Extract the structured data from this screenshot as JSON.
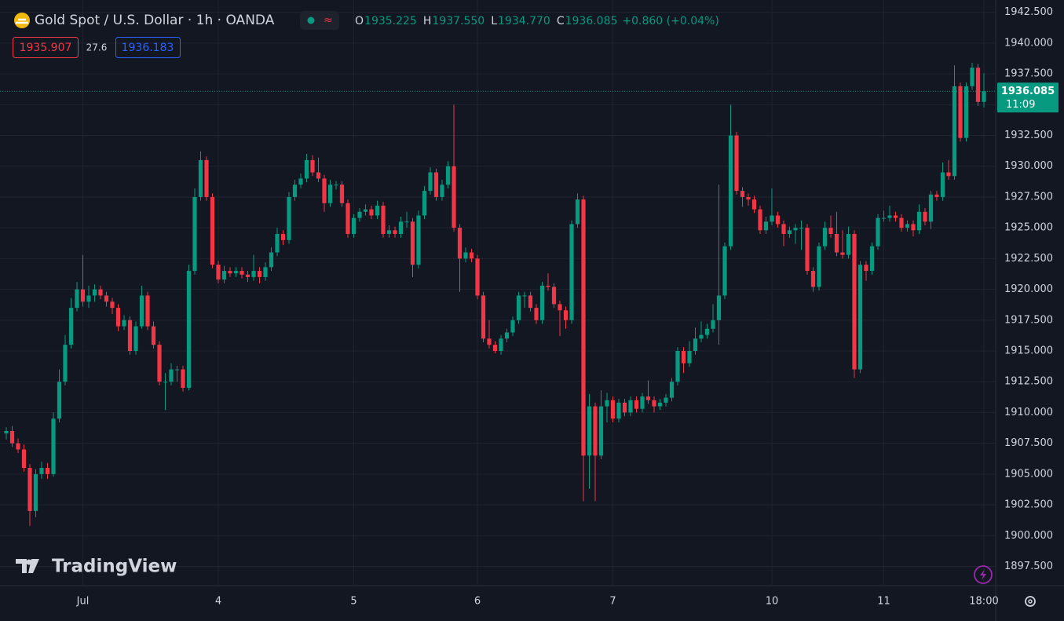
{
  "chart_data": {
    "type": "candlestick",
    "title": "Gold Spot / U.S. Dollar · 1h · OANDA",
    "legend": [
      {
        "label": "O",
        "value": "1935.225"
      },
      {
        "label": "H",
        "value": "1937.550"
      },
      {
        "label": "L",
        "value": "1934.770"
      },
      {
        "label": "C",
        "value": "1936.085"
      }
    ],
    "change": "+0.860 (+0.04%)",
    "bid": "1935.907",
    "spread": "27.6",
    "ask": "1936.183",
    "last_price_label": "1936.085",
    "countdown": "11:09",
    "watermark": "TradingView",
    "up_color": "#089981",
    "down_color": "#f23645",
    "grid": true,
    "ylim": [
      1896,
      1943.5
    ],
    "yticks": [
      {
        "value": 1897.5,
        "label": "1897.500"
      },
      {
        "value": 1900,
        "label": "1900.000"
      },
      {
        "value": 1902.5,
        "label": "1902.500"
      },
      {
        "value": 1905,
        "label": "1905.000"
      },
      {
        "value": 1907.5,
        "label": "1907.500"
      },
      {
        "value": 1910,
        "label": "1910.000"
      },
      {
        "value": 1912.5,
        "label": "1912.500"
      },
      {
        "value": 1915,
        "label": "1915.000"
      },
      {
        "value": 1917.5,
        "label": "1917.500"
      },
      {
        "value": 1920,
        "label": "1920.000"
      },
      {
        "value": 1922.5,
        "label": "1922.500"
      },
      {
        "value": 1925,
        "label": "1925.000"
      },
      {
        "value": 1927.5,
        "label": "1927.500"
      },
      {
        "value": 1930,
        "label": "1930.000"
      },
      {
        "value": 1932.5,
        "label": "1932.500"
      },
      {
        "value": 1935,
        "label": "1935.000"
      },
      {
        "value": 1937.5,
        "label": "1937.500"
      },
      {
        "value": 1940,
        "label": "1940.000"
      },
      {
        "value": 1942.5,
        "label": "1942.500"
      }
    ],
    "categories": [
      null,
      null,
      null,
      null,
      null,
      null,
      null,
      null,
      null,
      null,
      null,
      null,
      null,
      "Jul",
      null,
      null,
      null,
      null,
      null,
      null,
      null,
      null,
      null,
      null,
      null,
      null,
      null,
      null,
      null,
      null,
      null,
      null,
      null,
      null,
      null,
      null,
      "4",
      null,
      null,
      null,
      null,
      null,
      null,
      null,
      null,
      null,
      null,
      null,
      null,
      null,
      null,
      null,
      null,
      null,
      null,
      null,
      null,
      null,
      null,
      "5",
      null,
      null,
      null,
      null,
      null,
      null,
      null,
      null,
      null,
      null,
      null,
      null,
      null,
      null,
      null,
      null,
      null,
      null,
      null,
      null,
      "6",
      null,
      null,
      null,
      null,
      null,
      null,
      null,
      null,
      null,
      null,
      null,
      null,
      null,
      null,
      null,
      null,
      null,
      null,
      null,
      null,
      null,
      null,
      "7",
      null,
      null,
      null,
      null,
      null,
      null,
      null,
      null,
      null,
      null,
      null,
      null,
      null,
      null,
      null,
      null,
      null,
      null,
      null,
      null,
      null,
      null,
      null,
      null,
      null,
      null,
      "10",
      null,
      null,
      null,
      null,
      null,
      null,
      null,
      null,
      null,
      null,
      null,
      null,
      null,
      null,
      null,
      null,
      null,
      null,
      "11",
      null,
      null,
      null,
      null,
      null,
      null,
      null,
      null,
      null,
      null,
      null,
      null,
      null,
      null,
      null,
      null,
      "18:00"
    ],
    "ohlc": [
      [
        1908.3,
        1908.8,
        1907.8,
        1908.5
      ],
      [
        1908.5,
        1908.9,
        1907.2,
        1907.5
      ],
      [
        1907.5,
        1907.9,
        1906.7,
        1907
      ],
      [
        1907,
        1907.4,
        1905.2,
        1905.5
      ],
      [
        1905.5,
        1905.8,
        1900.8,
        1902
      ],
      [
        1902,
        1905.4,
        1901.5,
        1905
      ],
      [
        1905,
        1906,
        1904.6,
        1905.5
      ],
      [
        1905.5,
        1905.9,
        1904.6,
        1905
      ],
      [
        1905,
        1910,
        1904.8,
        1909.5
      ],
      [
        1909.5,
        1913.5,
        1909.2,
        1912.5
      ],
      [
        1912.5,
        1916.3,
        1912.2,
        1915.5
      ],
      [
        1915.5,
        1919.3,
        1915.2,
        1918.5
      ],
      [
        1918.5,
        1920.6,
        1918.2,
        1920
      ],
      [
        1920,
        1922.8,
        1918.6,
        1919
      ],
      [
        1919,
        1920.3,
        1918.5,
        1919.5
      ],
      [
        1919.5,
        1920.4,
        1919,
        1920
      ],
      [
        1920,
        1920.3,
        1919.2,
        1919.5
      ],
      [
        1919.5,
        1919.8,
        1918.6,
        1919
      ],
      [
        1919,
        1919.3,
        1918,
        1918.5
      ],
      [
        1918.5,
        1918.8,
        1916.6,
        1917
      ],
      [
        1917,
        1917.9,
        1916.7,
        1917.5
      ],
      [
        1917.5,
        1917.8,
        1914.7,
        1915
      ],
      [
        1915,
        1917.4,
        1914.7,
        1917
      ],
      [
        1917,
        1920.3,
        1916.8,
        1919.5
      ],
      [
        1919.5,
        1919.8,
        1916.7,
        1917
      ],
      [
        1917,
        1917.4,
        1915.2,
        1915.5
      ],
      [
        1915.5,
        1915.8,
        1912.2,
        1912.5
      ],
      [
        1912.5,
        1913.2,
        1910.2,
        1912.5
      ],
      [
        1912.5,
        1914,
        1912.2,
        1913.5
      ],
      [
        1913.5,
        1913.8,
        1912.5,
        1913.5
      ],
      [
        1913.5,
        1913.8,
        1911.7,
        1912
      ],
      [
        1912,
        1922,
        1911.8,
        1921.5
      ],
      [
        1921.5,
        1928.2,
        1921.2,
        1927.5
      ],
      [
        1927.5,
        1931.2,
        1927.2,
        1930.5
      ],
      [
        1930.5,
        1930.8,
        1927.2,
        1927.5
      ],
      [
        1927.5,
        1927.8,
        1921.7,
        1922
      ],
      [
        1922,
        1922.3,
        1920.5,
        1920.8
      ],
      [
        1920.8,
        1921.9,
        1920.5,
        1921.5
      ],
      [
        1921.5,
        1921.8,
        1921,
        1921.3
      ],
      [
        1921.3,
        1921.8,
        1921,
        1921.5
      ],
      [
        1921.5,
        1921.8,
        1920.9,
        1921.2
      ],
      [
        1921.2,
        1921.5,
        1920.6,
        1921
      ],
      [
        1921,
        1922.8,
        1920.7,
        1921.5
      ],
      [
        1921.5,
        1921.8,
        1920.5,
        1921
      ],
      [
        1921,
        1922.2,
        1920.7,
        1921.8
      ],
      [
        1921.8,
        1923.4,
        1921.5,
        1923
      ],
      [
        1923,
        1925,
        1922.7,
        1924.5
      ],
      [
        1924.5,
        1924.8,
        1923.6,
        1924
      ],
      [
        1924,
        1927.9,
        1923.7,
        1927.5
      ],
      [
        1927.5,
        1928.9,
        1927.2,
        1928.5
      ],
      [
        1928.5,
        1929.4,
        1928.2,
        1929
      ],
      [
        1929,
        1931,
        1928.7,
        1930.5
      ],
      [
        1930.5,
        1930.9,
        1929.2,
        1929.5
      ],
      [
        1929.5,
        1930.7,
        1928.7,
        1929
      ],
      [
        1929,
        1929.3,
        1926.3,
        1927
      ],
      [
        1927,
        1928.9,
        1926.7,
        1928.5
      ],
      [
        1928.5,
        1928.8,
        1928.1,
        1928.5
      ],
      [
        1928.5,
        1928.8,
        1926.7,
        1927
      ],
      [
        1927,
        1927.3,
        1924.2,
        1924.5
      ],
      [
        1924.5,
        1926.1,
        1924.2,
        1925.8
      ],
      [
        1925.8,
        1926.6,
        1925.5,
        1926.3
      ],
      [
        1926.3,
        1926.9,
        1926,
        1926.5
      ],
      [
        1926.5,
        1926.8,
        1925.7,
        1926
      ],
      [
        1926,
        1927.2,
        1925.7,
        1926.8
      ],
      [
        1926.8,
        1927.1,
        1924.2,
        1924.5
      ],
      [
        1924.5,
        1925.2,
        1924.2,
        1924.8
      ],
      [
        1924.8,
        1925.1,
        1924.2,
        1924.5
      ],
      [
        1924.5,
        1925.9,
        1924.2,
        1925.5
      ],
      [
        1925.5,
        1926.3,
        1925,
        1925.5
      ],
      [
        1925.5,
        1925.8,
        1921,
        1922
      ],
      [
        1922,
        1926.4,
        1921.7,
        1926
      ],
      [
        1926,
        1928.4,
        1925.7,
        1928
      ],
      [
        1928,
        1929.9,
        1927.7,
        1929.5
      ],
      [
        1929.5,
        1929.8,
        1927.2,
        1927.5
      ],
      [
        1927.5,
        1928.9,
        1927.2,
        1928.5
      ],
      [
        1928.5,
        1930.4,
        1928.2,
        1930
      ],
      [
        1930,
        1935,
        1924.7,
        1925
      ],
      [
        1925,
        1925.3,
        1919.8,
        1922.5
      ],
      [
        1922.5,
        1923.4,
        1922.2,
        1923
      ],
      [
        1923,
        1923.3,
        1922.2,
        1922.5
      ],
      [
        1922.5,
        1922.8,
        1919.2,
        1919.5
      ],
      [
        1919.5,
        1919.8,
        1915.7,
        1916
      ],
      [
        1916,
        1917.5,
        1915.2,
        1915.5
      ],
      [
        1915.5,
        1915.8,
        1914.8,
        1915
      ],
      [
        1915,
        1916.3,
        1914.7,
        1916
      ],
      [
        1916,
        1916.8,
        1915.7,
        1916.5
      ],
      [
        1916.5,
        1917.8,
        1916.2,
        1917.5
      ],
      [
        1917.5,
        1919.8,
        1917.2,
        1919.5
      ],
      [
        1919.5,
        1919.8,
        1918.5,
        1919.5
      ],
      [
        1919.5,
        1919.8,
        1918.2,
        1918.5
      ],
      [
        1918.5,
        1918.8,
        1917.2,
        1917.5
      ],
      [
        1917.5,
        1920.6,
        1917.2,
        1920.3
      ],
      [
        1920.3,
        1921.3,
        1919.9,
        1920.2
      ],
      [
        1920.2,
        1920.5,
        1918.5,
        1918.8
      ],
      [
        1918.8,
        1919.1,
        1916.2,
        1918.3
      ],
      [
        1918.3,
        1918.6,
        1916.8,
        1917.5
      ],
      [
        1917.5,
        1925.6,
        1917.2,
        1925.3
      ],
      [
        1925.3,
        1927.8,
        1925,
        1927.3
      ],
      [
        1927.3,
        1927.6,
        1902.8,
        1906.5
      ],
      [
        1906.5,
        1911.5,
        1903.8,
        1910.5
      ],
      [
        1910.5,
        1910.8,
        1902.8,
        1906.5
      ],
      [
        1906.5,
        1911.8,
        1906.2,
        1910.5
      ],
      [
        1910.5,
        1911.6,
        1909.2,
        1911
      ],
      [
        1911,
        1911.3,
        1909.2,
        1909.5
      ],
      [
        1909.5,
        1911.1,
        1909.2,
        1910.8
      ],
      [
        1910.8,
        1911.1,
        1909.7,
        1910
      ],
      [
        1910,
        1911.3,
        1909.7,
        1911
      ],
      [
        1911,
        1911.3,
        1910,
        1910.3
      ],
      [
        1910.3,
        1911.6,
        1910,
        1911.3
      ],
      [
        1911.3,
        1912.6,
        1910.7,
        1911
      ],
      [
        1911,
        1911.3,
        1910,
        1910.5
      ],
      [
        1910.5,
        1911.1,
        1910.2,
        1910.8
      ],
      [
        1910.8,
        1911.5,
        1910.5,
        1911.2
      ],
      [
        1911.2,
        1912.8,
        1910.9,
        1912.5
      ],
      [
        1912.5,
        1915.3,
        1912.2,
        1915
      ],
      [
        1915,
        1915.3,
        1913.2,
        1914
      ],
      [
        1914,
        1915.8,
        1913.7,
        1915
      ],
      [
        1915,
        1916.9,
        1914.7,
        1916
      ],
      [
        1916,
        1917.4,
        1915.7,
        1916.3
      ],
      [
        1916.3,
        1917.2,
        1916,
        1916.8
      ],
      [
        1916.8,
        1918.8,
        1916.5,
        1917.5
      ],
      [
        1917.5,
        1928.5,
        1915.5,
        1919.5
      ],
      [
        1919.5,
        1923.8,
        1919.2,
        1923.5
      ],
      [
        1923.5,
        1935,
        1923.2,
        1932.5
      ],
      [
        1932.5,
        1932.8,
        1927.7,
        1928
      ],
      [
        1928,
        1928.3,
        1926.7,
        1927.5
      ],
      [
        1927.5,
        1927.8,
        1926.8,
        1927.3
      ],
      [
        1927.3,
        1927.6,
        1926.2,
        1926.5
      ],
      [
        1926.5,
        1926.8,
        1924.5,
        1924.8
      ],
      [
        1924.8,
        1925.9,
        1924.5,
        1925.5
      ],
      [
        1925.5,
        1928.2,
        1925.2,
        1926
      ],
      [
        1926,
        1926.3,
        1925,
        1925.3
      ],
      [
        1925.3,
        1925.6,
        1923.5,
        1924.5
      ],
      [
        1924.5,
        1925.1,
        1924.2,
        1924.8
      ],
      [
        1924.8,
        1925.3,
        1923.7,
        1925
      ],
      [
        1925,
        1925.6,
        1923.2,
        1925
      ],
      [
        1925,
        1925.3,
        1921.2,
        1921.5
      ],
      [
        1921.5,
        1921.8,
        1919.8,
        1920.2
      ],
      [
        1920.2,
        1923.8,
        1919.9,
        1923.5
      ],
      [
        1923.5,
        1925.5,
        1923.2,
        1925
      ],
      [
        1925,
        1926,
        1924.2,
        1924.5
      ],
      [
        1924.5,
        1926.3,
        1922.7,
        1923
      ],
      [
        1923,
        1924.8,
        1922.5,
        1922.8
      ],
      [
        1922.8,
        1925.1,
        1922.5,
        1924.5
      ],
      [
        1924.5,
        1924.8,
        1912.8,
        1913.5
      ],
      [
        1913.5,
        1922.3,
        1913.2,
        1922
      ],
      [
        1922,
        1922.3,
        1920.7,
        1921.5
      ],
      [
        1921.5,
        1923.8,
        1921.2,
        1923.5
      ],
      [
        1923.5,
        1926.1,
        1923.2,
        1925.8
      ],
      [
        1925.8,
        1926.4,
        1925.5,
        1925.8
      ],
      [
        1925.8,
        1926.8,
        1925.5,
        1926
      ],
      [
        1926,
        1926.3,
        1925.5,
        1925.8
      ],
      [
        1925.8,
        1926.1,
        1924.7,
        1925
      ],
      [
        1925,
        1925.6,
        1924.7,
        1925.3
      ],
      [
        1925.3,
        1925.6,
        1924.3,
        1924.8
      ],
      [
        1924.8,
        1926.9,
        1924.5,
        1926.3
      ],
      [
        1926.3,
        1926.6,
        1925.2,
        1925.5
      ],
      [
        1925.5,
        1928,
        1924.9,
        1927.7
      ],
      [
        1927.7,
        1928,
        1927.2,
        1927.5
      ],
      [
        1927.5,
        1930.3,
        1927.2,
        1929.5
      ],
      [
        1929.5,
        1930.5,
        1928.9,
        1929.2
      ],
      [
        1929.2,
        1938.2,
        1928.9,
        1936.5
      ],
      [
        1936.5,
        1936.8,
        1932,
        1932.3
      ],
      [
        1932.3,
        1936.8,
        1932,
        1936.5
      ],
      [
        1936.5,
        1938.4,
        1936.2,
        1938
      ],
      [
        1938,
        1938.3,
        1934.9,
        1935.225
      ],
      [
        1935.225,
        1937.55,
        1934.77,
        1936.085
      ]
    ]
  }
}
